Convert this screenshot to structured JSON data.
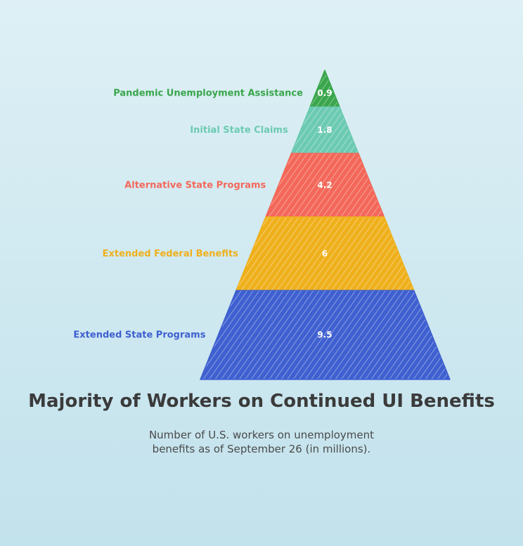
{
  "chart_data": {
    "type": "pyramid",
    "title": "Majority of Workers on Continued UI Benefits",
    "subtitle": "Number of U.S. workers on unemployment benefits as of September 26 (in millions).",
    "segments": [
      {
        "label": "Pandemic Unemployment Assistance",
        "value": 0.9,
        "value_label": "0.9",
        "color": "#3aa64c"
      },
      {
        "label": "Initial State Claims",
        "value": 1.8,
        "value_label": "1.8",
        "color": "#6ccab2"
      },
      {
        "label": "Alternative State Programs",
        "value": 4.2,
        "value_label": "4.2",
        "color": "#f3685a"
      },
      {
        "label": "Extended Federal Benefits",
        "value": 6,
        "value_label": "6",
        "color": "#efb01c"
      },
      {
        "label": "Extended State Programs",
        "value": 9.5,
        "value_label": "9.5",
        "color": "#3f60d0"
      }
    ]
  }
}
